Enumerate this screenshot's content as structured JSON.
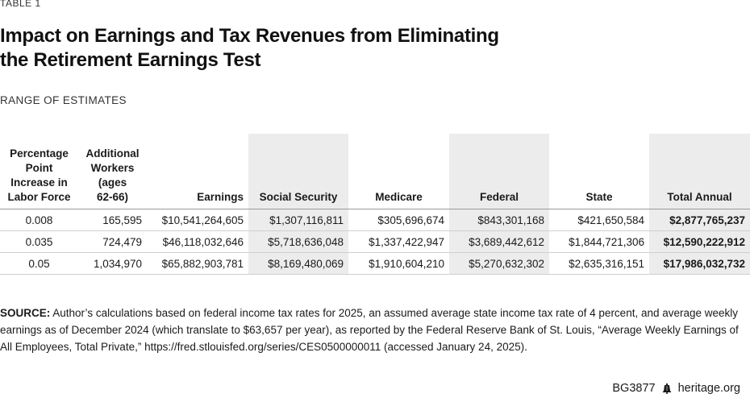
{
  "table_label": "TABLE 1",
  "title_line1": "Impact on Earnings and Tax Revenues from Eliminating",
  "title_line2": "the Retirement Earnings Test",
  "subtitle": "RANGE OF ESTIMATES",
  "headers": [
    [
      "Percentage",
      "Point",
      "Increase in",
      "Labor Force"
    ],
    [
      "Additional",
      "Workers",
      "(ages",
      "62-66)"
    ],
    [
      "Earnings"
    ],
    [
      "Social Security"
    ],
    [
      "Medicare"
    ],
    [
      "Federal"
    ],
    [
      "State"
    ],
    [
      "Total Annual"
    ]
  ],
  "rows": [
    [
      "0.008",
      "165,595",
      "$10,541,264,605",
      "$1,307,116,811",
      "$305,696,674",
      "$843,301,168",
      "$421,650,584",
      "$2,877,765,237"
    ],
    [
      "0.035",
      "724,479",
      "$46,118,032,646",
      "$5,718,636,048",
      "$1,337,422,947",
      "$3,689,442,612",
      "$1,844,721,306",
      "$12,590,222,912"
    ],
    [
      "0.05",
      "1,034,970",
      "$65,882,903,781",
      "$8,169,480,069",
      "$1,910,604,210",
      "$5,270,632,302",
      "$2,635,316,151",
      "$17,986,032,732"
    ]
  ],
  "source_label": "SOURCE:",
  "source_text": "Author’s calculations based on federal income tax rates for 2025, an assumed average state income tax rate of 4 percent, and average weekly earnings as of December 2024 (which translate to $63,657 per year), as reported by the Federal Reserve Bank of St. Louis, “Average Weekly Earnings of All Employees, Total Private,” https://fred.stlouisfed.org/series/CES0500000011 (accessed January 24, 2025).",
  "footer_code": "BG3877",
  "footer_icon": "liberty-bell-icon",
  "footer_site": "heritage.org"
}
